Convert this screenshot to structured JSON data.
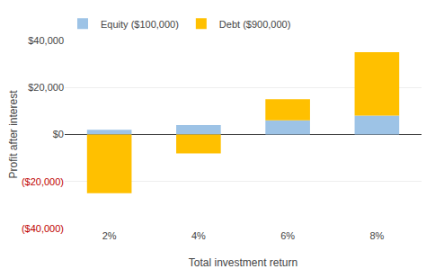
{
  "chart_data": {
    "type": "bar",
    "stacked": true,
    "categories": [
      "2%",
      "4%",
      "6%",
      "8%"
    ],
    "series": [
      {
        "name": "Equity ($100,000)",
        "color": "#9DC3E6",
        "values": [
          2000,
          4000,
          6000,
          8000
        ]
      },
      {
        "name": "Debt ($900,000)",
        "color": "#FFC000",
        "values": [
          -25000,
          -8000,
          9000,
          27000
        ]
      }
    ],
    "xlabel": "Total investment return",
    "ylabel": "Profit after interest",
    "ylim": [
      -40000,
      40000
    ],
    "yticks": [
      {
        "value": -40000,
        "label": "($40,000)"
      },
      {
        "value": -20000,
        "label": "($20,000)"
      },
      {
        "value": 0,
        "label": "$0"
      },
      {
        "value": 20000,
        "label": "$20,000"
      },
      {
        "value": 40000,
        "label": "$40,000"
      }
    ],
    "grid": true,
    "legend": "upper left"
  }
}
